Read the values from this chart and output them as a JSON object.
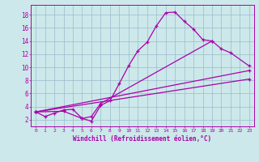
{
  "xlabel": "Windchill (Refroidissement éolien,°C)",
  "xlim": [
    -0.5,
    23.5
  ],
  "ylim": [
    1.0,
    19.5
  ],
  "xticks": [
    0,
    1,
    2,
    3,
    4,
    5,
    6,
    7,
    8,
    9,
    10,
    11,
    12,
    13,
    14,
    15,
    16,
    17,
    18,
    19,
    20,
    21,
    22,
    23
  ],
  "yticks": [
    2,
    4,
    6,
    8,
    10,
    12,
    14,
    16,
    18
  ],
  "bg_color": "#cce8ea",
  "line_color": "#aa00aa",
  "grid_color": "#99bbcc",
  "line1_x": [
    0,
    1,
    2,
    3,
    4,
    5,
    6,
    7,
    8,
    9,
    10,
    11,
    12,
    13,
    14,
    15,
    16,
    17,
    18,
    19
  ],
  "line1_y": [
    3.2,
    2.5,
    3.0,
    3.5,
    3.6,
    2.2,
    1.8,
    4.2,
    4.9,
    7.5,
    10.2,
    12.5,
    13.8,
    16.3,
    18.3,
    18.4,
    17.0,
    15.8,
    14.2,
    14.0
  ],
  "line2_x": [
    0,
    3,
    5,
    6,
    7,
    19,
    20,
    21,
    23
  ],
  "line2_y": [
    3.2,
    3.3,
    2.2,
    2.5,
    4.5,
    14.0,
    12.8,
    12.2,
    10.2
  ],
  "line3_x": [
    0,
    23
  ],
  "line3_y": [
    3.2,
    9.5
  ],
  "line4_x": [
    0,
    23
  ],
  "line4_y": [
    3.2,
    8.2
  ]
}
